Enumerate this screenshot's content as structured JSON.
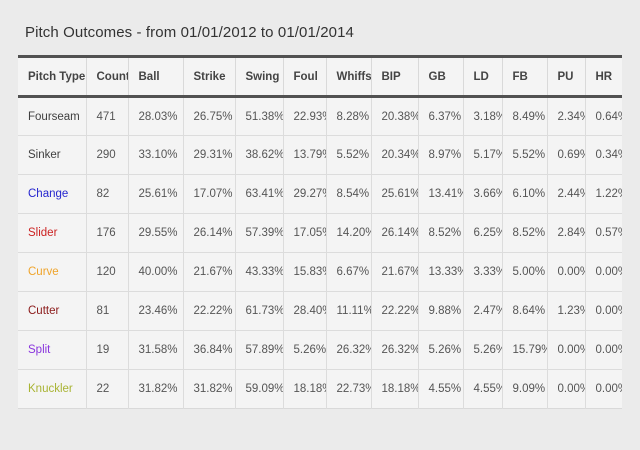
{
  "title": "Pitch Outcomes - from 01/01/2012 to 01/01/2014",
  "table": {
    "columns": [
      "Pitch Type",
      "Count",
      "Ball",
      "Strike",
      "Swing",
      "Foul",
      "Whiffs",
      "BIP",
      "GB",
      "LD",
      "FB",
      "PU",
      "HR"
    ],
    "rows": [
      {
        "pitch_type": "Fourseam",
        "color": "#3f3f3f",
        "count": "471",
        "values": [
          "28.03%",
          "26.75%",
          "51.38%",
          "22.93%",
          "8.28%",
          "20.38%",
          "6.37%",
          "3.18%",
          "8.49%",
          "2.34%",
          "0.64%"
        ]
      },
      {
        "pitch_type": "Sinker",
        "color": "#3f3f3f",
        "count": "290",
        "values": [
          "33.10%",
          "29.31%",
          "38.62%",
          "13.79%",
          "5.52%",
          "20.34%",
          "8.97%",
          "5.17%",
          "5.52%",
          "0.69%",
          "0.34%"
        ]
      },
      {
        "pitch_type": "Change",
        "color": "#2525cf",
        "count": "82",
        "values": [
          "25.61%",
          "17.07%",
          "63.41%",
          "29.27%",
          "8.54%",
          "25.61%",
          "13.41%",
          "3.66%",
          "6.10%",
          "2.44%",
          "1.22%"
        ]
      },
      {
        "pitch_type": "Slider",
        "color": "#cc2222",
        "count": "176",
        "values": [
          "29.55%",
          "26.14%",
          "57.39%",
          "17.05%",
          "14.20%",
          "26.14%",
          "8.52%",
          "6.25%",
          "8.52%",
          "2.84%",
          "0.57%"
        ]
      },
      {
        "pitch_type": "Curve",
        "color": "#efa42b",
        "count": "120",
        "values": [
          "40.00%",
          "21.67%",
          "43.33%",
          "15.83%",
          "6.67%",
          "21.67%",
          "13.33%",
          "3.33%",
          "5.00%",
          "0.00%",
          "0.00%"
        ]
      },
      {
        "pitch_type": "Cutter",
        "color": "#8b1a1a",
        "count": "81",
        "values": [
          "23.46%",
          "22.22%",
          "61.73%",
          "28.40%",
          "11.11%",
          "22.22%",
          "9.88%",
          "2.47%",
          "8.64%",
          "1.23%",
          "0.00%"
        ]
      },
      {
        "pitch_type": "Split",
        "color": "#8a36dd",
        "count": "19",
        "values": [
          "31.58%",
          "36.84%",
          "57.89%",
          "5.26%",
          "26.32%",
          "26.32%",
          "5.26%",
          "5.26%",
          "15.79%",
          "0.00%",
          "0.00%"
        ]
      },
      {
        "pitch_type": "Knuckler",
        "color": "#a9b434",
        "count": "22",
        "values": [
          "31.82%",
          "31.82%",
          "59.09%",
          "18.18%",
          "22.73%",
          "18.18%",
          "4.55%",
          "4.55%",
          "9.09%",
          "0.00%",
          "0.00%"
        ]
      }
    ]
  }
}
